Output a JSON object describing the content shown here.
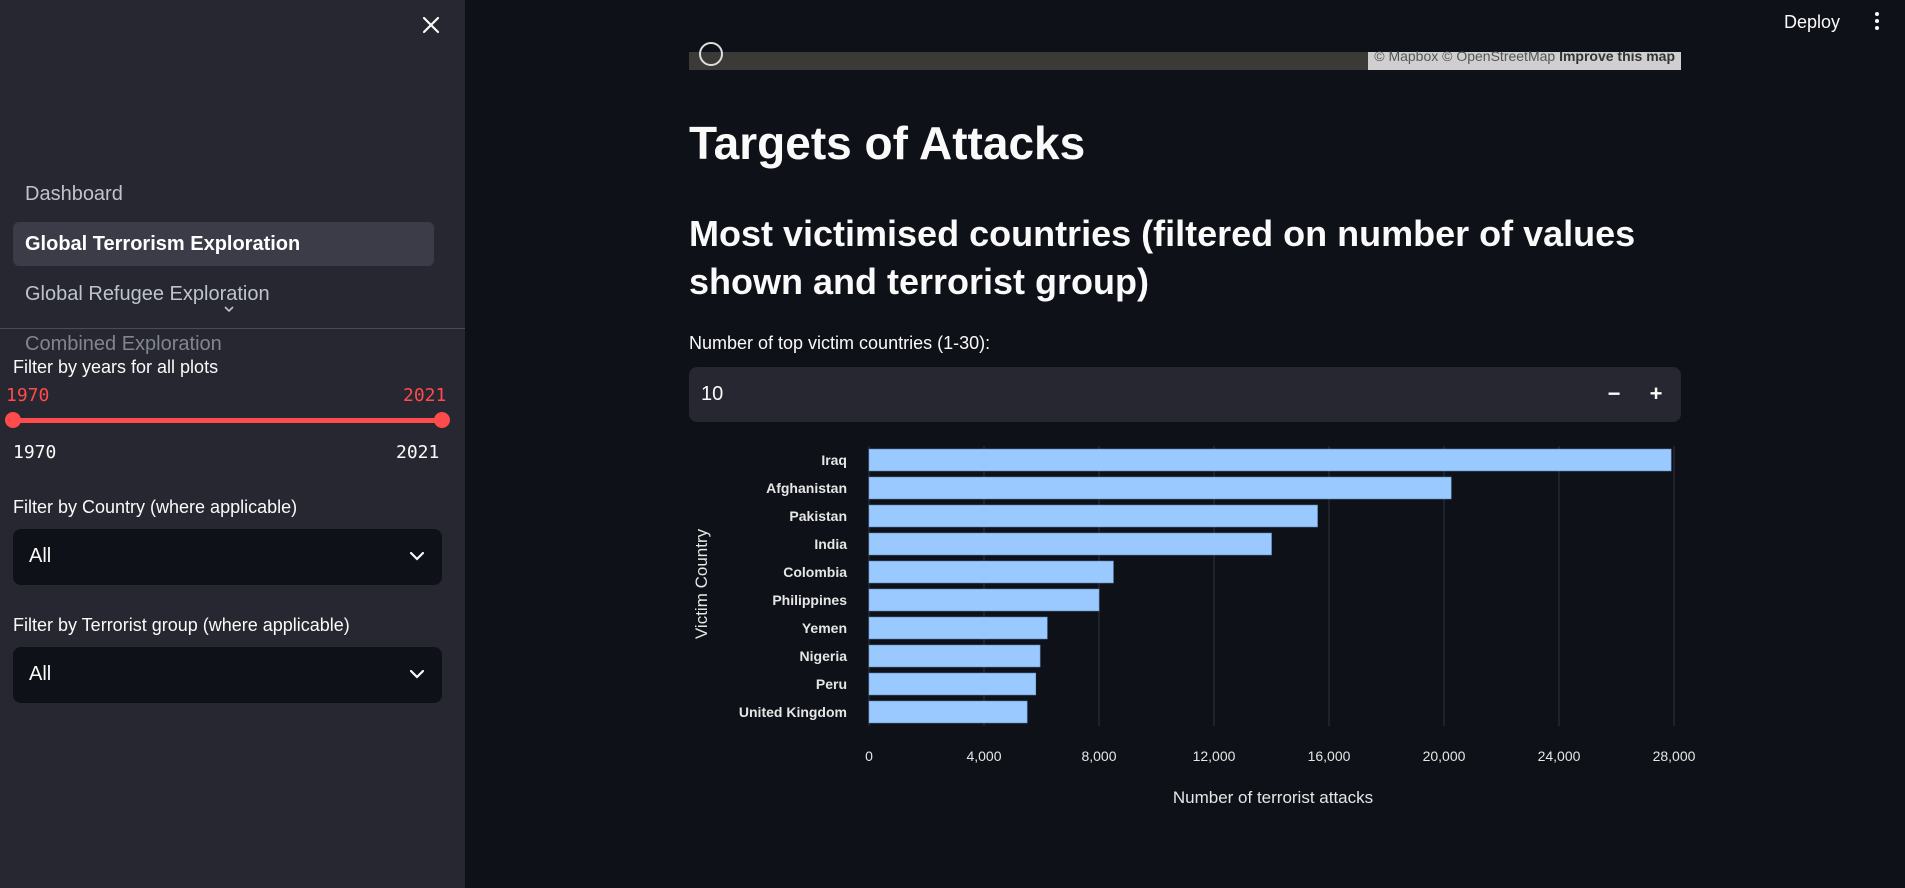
{
  "sidebar": {
    "nav": [
      {
        "label": "Dashboard"
      },
      {
        "label": "Global Terrorism Exploration"
      },
      {
        "label": "Global Refugee Exploration"
      },
      {
        "label": "Combined Exploration"
      }
    ],
    "years_filter": {
      "label": "Filter by years for all plots",
      "low": "1970",
      "high": "2021",
      "min": "1970",
      "max": "2021"
    },
    "country_filter": {
      "label": "Filter by Country (where applicable)",
      "value": "All"
    },
    "group_filter": {
      "label": "Filter by Terrorist group (where applicable)",
      "value": "All"
    }
  },
  "header": {
    "deploy_label": "Deploy"
  },
  "map": {
    "attribution_1": "© Mapbox © OpenStreetMap",
    "attribution_2": "Improve this map"
  },
  "main": {
    "title": "Targets of Attacks",
    "subtitle": "Most victimised countries (filtered on number of values shown and terrorist group)",
    "number_input": {
      "label": "Number of top victim countries (1-30):",
      "value": "10",
      "minus": "−",
      "plus": "+"
    }
  },
  "colors": {
    "accent": "#ff4b4b",
    "bar": "#99c9ff",
    "sidebar_bg": "#262730",
    "main_bg": "#0e1117"
  },
  "chart_data": {
    "type": "bar",
    "orientation": "horizontal",
    "categories": [
      "Iraq",
      "Afghanistan",
      "Pakistan",
      "India",
      "Colombia",
      "Philippines",
      "Yemen",
      "Nigeria",
      "Peru",
      "United Kingdom"
    ],
    "values": [
      27900,
      20250,
      15600,
      14000,
      8500,
      8000,
      6200,
      5950,
      5800,
      5500
    ],
    "xlabel": "Number of terrorist attacks",
    "ylabel": "Victim Country",
    "xlim": [
      0,
      28000
    ],
    "xticks": [
      0,
      4000,
      8000,
      12000,
      16000,
      20000,
      24000,
      28000
    ],
    "xtick_labels": [
      "0",
      "4,000",
      "8,000",
      "12,000",
      "16,000",
      "20,000",
      "24,000",
      "28,000"
    ],
    "grid": true
  }
}
